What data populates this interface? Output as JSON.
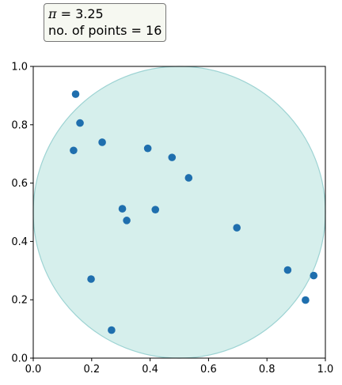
{
  "annotation": {
    "pi_symbol": "π",
    "pi_text": " = 3.25",
    "points_text": "no. of points = 16"
  },
  "chart_data": {
    "type": "scatter",
    "title": "",
    "xlabel": "",
    "ylabel": "",
    "xlim": [
      0,
      1
    ],
    "ylim": [
      0,
      1
    ],
    "xticks": [
      "0.0",
      "0.2",
      "0.4",
      "0.6",
      "0.8",
      "1.0"
    ],
    "yticks": [
      "0.0",
      "0.2",
      "0.4",
      "0.6",
      "0.8",
      "1.0"
    ],
    "grid": false,
    "circle": {
      "center": [
        0.5,
        0.5
      ],
      "radius": 0.5,
      "fill": "#5bbfb3",
      "opacity": 0.25,
      "edge": "#9dd3d3"
    },
    "point_color": "#1f6fae",
    "points": [
      [
        0.145,
        0.905
      ],
      [
        0.16,
        0.806
      ],
      [
        0.138,
        0.712
      ],
      [
        0.236,
        0.74
      ],
      [
        0.392,
        0.719
      ],
      [
        0.475,
        0.688
      ],
      [
        0.532,
        0.618
      ],
      [
        0.305,
        0.512
      ],
      [
        0.418,
        0.509
      ],
      [
        0.32,
        0.472
      ],
      [
        0.697,
        0.447
      ],
      [
        0.198,
        0.271
      ],
      [
        0.871,
        0.302
      ],
      [
        0.96,
        0.283
      ],
      [
        0.932,
        0.199
      ],
      [
        0.268,
        0.096
      ]
    ]
  }
}
